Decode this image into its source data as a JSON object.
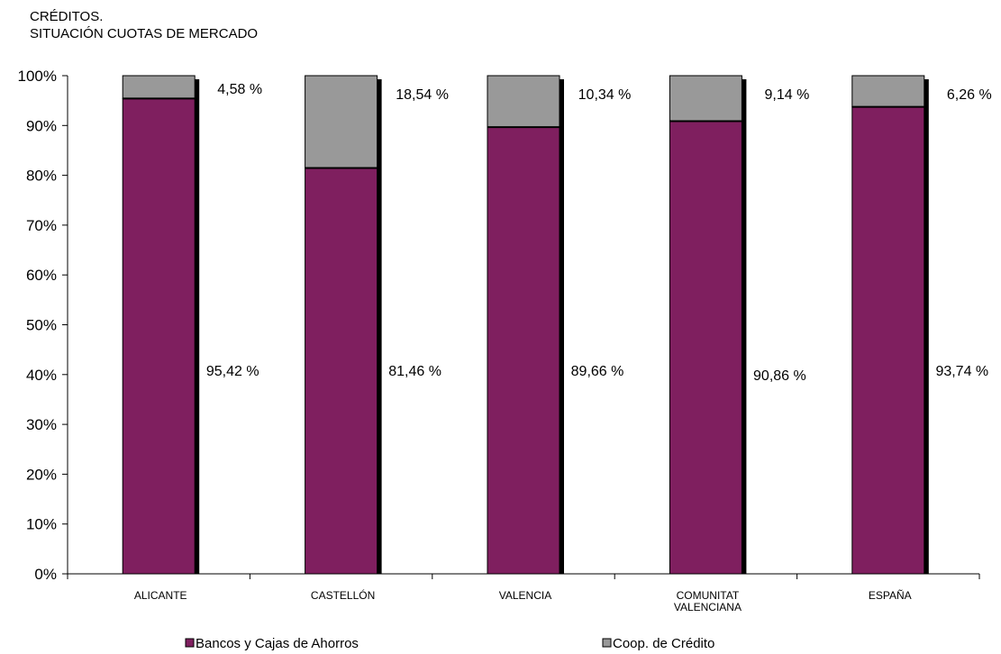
{
  "chart_data": {
    "type": "bar",
    "stacked": true,
    "title_lines": [
      "CRÉDITOS.",
      "SITUACIÓN CUOTAS DE MERCADO"
    ],
    "categories": [
      [
        "ALICANTE"
      ],
      [
        "CASTELLÓN"
      ],
      [
        "VALENCIA"
      ],
      [
        "COMUNITAT",
        "VALENCIANA"
      ],
      [
        "ESPAÑA"
      ]
    ],
    "series": [
      {
        "name": "Bancos y Cajas de Ahorros",
        "color": "#7f1f5f",
        "values": [
          95.42,
          81.46,
          89.66,
          90.86,
          93.74
        ],
        "labels": [
          "95,42 %",
          "81,46 %",
          "89,66 %",
          "90,86 %",
          "93,74 %"
        ]
      },
      {
        "name": "Coop. de Crédito",
        "color": "#999999",
        "values": [
          4.58,
          18.54,
          10.34,
          9.14,
          6.26
        ],
        "labels": [
          "4,58 %",
          "18,54 %",
          "10,34 %",
          "9,14 %",
          "6,26 %"
        ]
      }
    ],
    "yticks": [
      "0%",
      "10%",
      "20%",
      "30%",
      "40%",
      "50%",
      "60%",
      "70%",
      "80%",
      "90%",
      "100%"
    ],
    "ylim": [
      0,
      100
    ],
    "grid": false,
    "legend_position": "bottom"
  }
}
